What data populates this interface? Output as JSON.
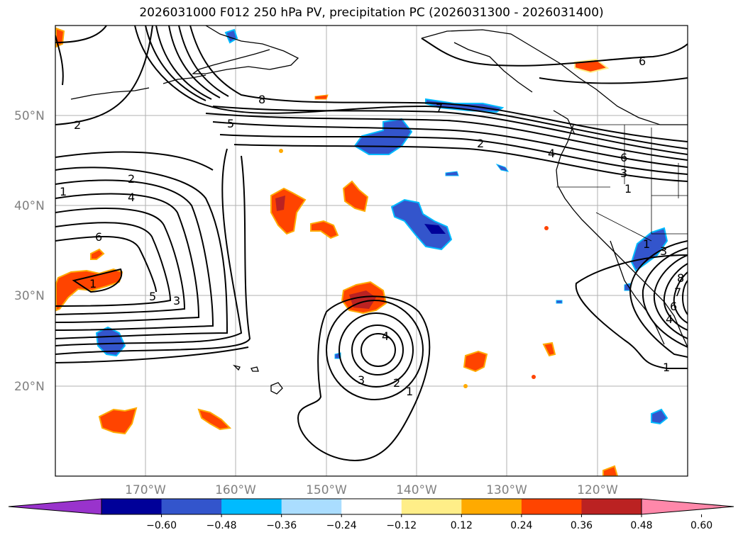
{
  "title": "2026031000 F012 250 hPa PV, precipitation PC (2026031300 - 2026031400)",
  "lat_labels": [
    "50°N",
    "40°N",
    "30°N",
    "20°N"
  ],
  "lon_labels": [
    "170°W",
    "160°W",
    "150°W",
    "140°W",
    "130°W",
    "120°W"
  ],
  "colorbar": {
    "colors": [
      "#9933cc",
      "#000099",
      "#3355cc",
      "#00bbff",
      "#aaddff",
      "#ffffff",
      "#ffee88",
      "#ffaa00",
      "#ff4400",
      "#bb2222",
      "#ff88aa"
    ],
    "ticks": [
      "−0.60",
      "−0.48",
      "−0.36",
      "−0.24",
      "−0.12",
      "0.12",
      "0.24",
      "0.36",
      "0.48",
      "0.60"
    ]
  },
  "contour_labels": [
    "8",
    "5",
    "2",
    "2",
    "4",
    "6",
    "5",
    "3",
    "1",
    "1",
    "2",
    "4",
    "3",
    "2",
    "1",
    "4",
    "6",
    "3",
    "1",
    "1",
    "3",
    "7",
    "8",
    "6",
    "4",
    "1",
    "7",
    "6"
  ]
}
